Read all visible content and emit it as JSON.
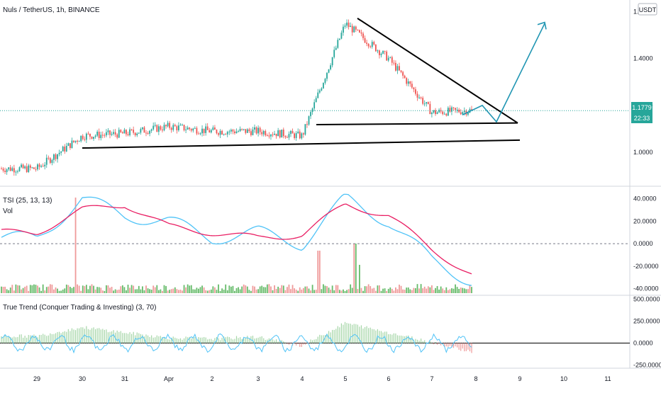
{
  "header": {
    "symbol_title": "Nuls / TetherUS, 1h, BINANCE",
    "currency_badge": "USDT"
  },
  "colors": {
    "up": "#26a69a",
    "down": "#ef5350",
    "tsi_line": "#e91e63",
    "tsi_signal": "#4fc3f7",
    "volume_up": "#66bb6a",
    "volume_down": "#ef9a9a",
    "trend_up": "#a5d6a7",
    "trend_down": "#ef9a9a",
    "trend_line": "#4fc3f7",
    "drawing_black": "#000000",
    "projection": "#2196b3",
    "last_price_bg": "#26a69a"
  },
  "price_panel": {
    "last_price": "1.1779",
    "countdown": "22:33",
    "y_ticks": [
      "1.6000",
      "1.4000",
      "1.2000",
      "1.0000"
    ],
    "y_range": [
      0.87,
      1.62
    ],
    "last_price_value": 1.1779
  },
  "tsi_panel": {
    "title": "TSI (25, 13, 13)",
    "volume_label": "Vol",
    "y_ticks": [
      "40.0000",
      "20.0000",
      "0.0000",
      "-20.0000",
      "-40.0000"
    ],
    "y_range": [
      -44,
      48
    ]
  },
  "trend_panel": {
    "title": "True Trend (Conquer Trading & Investing) (3, 70)",
    "y_ticks": [
      "500.0000",
      "250.0000",
      "0.0000",
      "-250.0000"
    ],
    "y_range": [
      -270,
      520
    ]
  },
  "x_axis": {
    "labels": [
      "29",
      "30",
      "31",
      "Apr",
      "2",
      "3",
      "4",
      "5",
      "6",
      "7",
      "8",
      "9",
      "10",
      "11"
    ]
  },
  "chart_data": [
    {
      "type": "candlestick",
      "title": "Nuls / TetherUS, 1h, BINANCE",
      "x": [
        "29",
        "30",
        "31",
        "Apr",
        "2",
        "3",
        "4",
        "5",
        "6",
        "7",
        "8"
      ],
      "close_approx": [
        0.93,
        1.07,
        1.08,
        1.11,
        1.09,
        1.09,
        1.07,
        1.55,
        1.4,
        1.17,
        1.18
      ],
      "y_range": [
        0.87,
        1.62
      ]
    },
    {
      "type": "line",
      "title": "TSI (25, 13, 13)",
      "x": [
        "29",
        "30",
        "31",
        "Apr",
        "2",
        "3",
        "4",
        "5",
        "6",
        "7",
        "8"
      ],
      "series": [
        {
          "name": "TSI",
          "values": [
            10,
            30,
            35,
            15,
            10,
            5,
            8,
            35,
            25,
            -5,
            -30
          ]
        },
        {
          "name": "Signal",
          "values": [
            5,
            40,
            25,
            20,
            5,
            10,
            0,
            40,
            20,
            -15,
            -35
          ]
        }
      ],
      "y_range": [
        -44,
        48
      ]
    },
    {
      "type": "bar",
      "title": "True Trend (Conquer Trading & Investing) (3, 70)",
      "x": [
        "29",
        "30",
        "31",
        "Apr",
        "2",
        "3",
        "4",
        "5",
        "6",
        "7",
        "8"
      ],
      "values": [
        80,
        180,
        120,
        60,
        50,
        70,
        -30,
        230,
        120,
        10,
        -110
      ],
      "y_range": [
        -270,
        520
      ]
    }
  ]
}
